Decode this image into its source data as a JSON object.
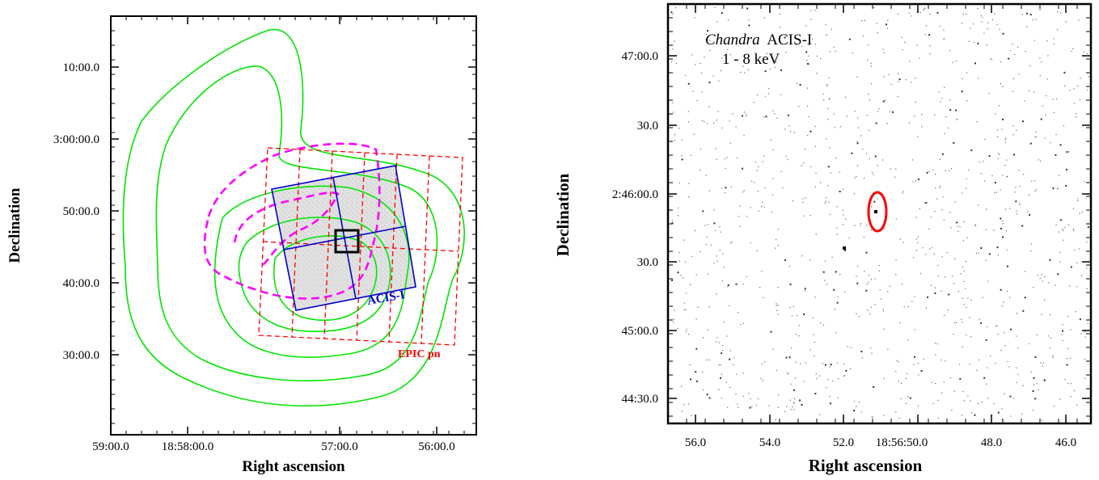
{
  "left_panel": {
    "x_ticks": [
      "59:00.0",
      "18:58:00.0",
      "57:00.0",
      "56:00.0"
    ],
    "y_ticks": [
      "10:00.0",
      "3:00:00.0",
      "50:00.0",
      "40:00.0",
      "30:00.0"
    ],
    "xlabel": "Right ascension",
    "ylabel": "Declination",
    "acis_label": "ACIS-I",
    "epic_label": "EPIC pn",
    "colors": {
      "contours": "#00e600",
      "epic": "#ff0000",
      "acis": "#0000cc",
      "magenta": "#ff00ff",
      "box": "#000000"
    }
  },
  "right_panel": {
    "instrument_italic": "Chandra",
    "instrument": "ACIS-I",
    "energy": "1 - 8 keV",
    "x_ticks": [
      "56.0",
      "54.0",
      "52.0",
      "18:56:50.0",
      "48.0",
      "46.0"
    ],
    "y_ticks": [
      "47:00.0",
      "30.0",
      "2:46:00.0",
      "30.0",
      "45:00.0",
      "44:30.0"
    ],
    "xlabel": "Right ascension",
    "ylabel": "Declination",
    "colors": {
      "source_ellipse": "#ff0000"
    }
  }
}
